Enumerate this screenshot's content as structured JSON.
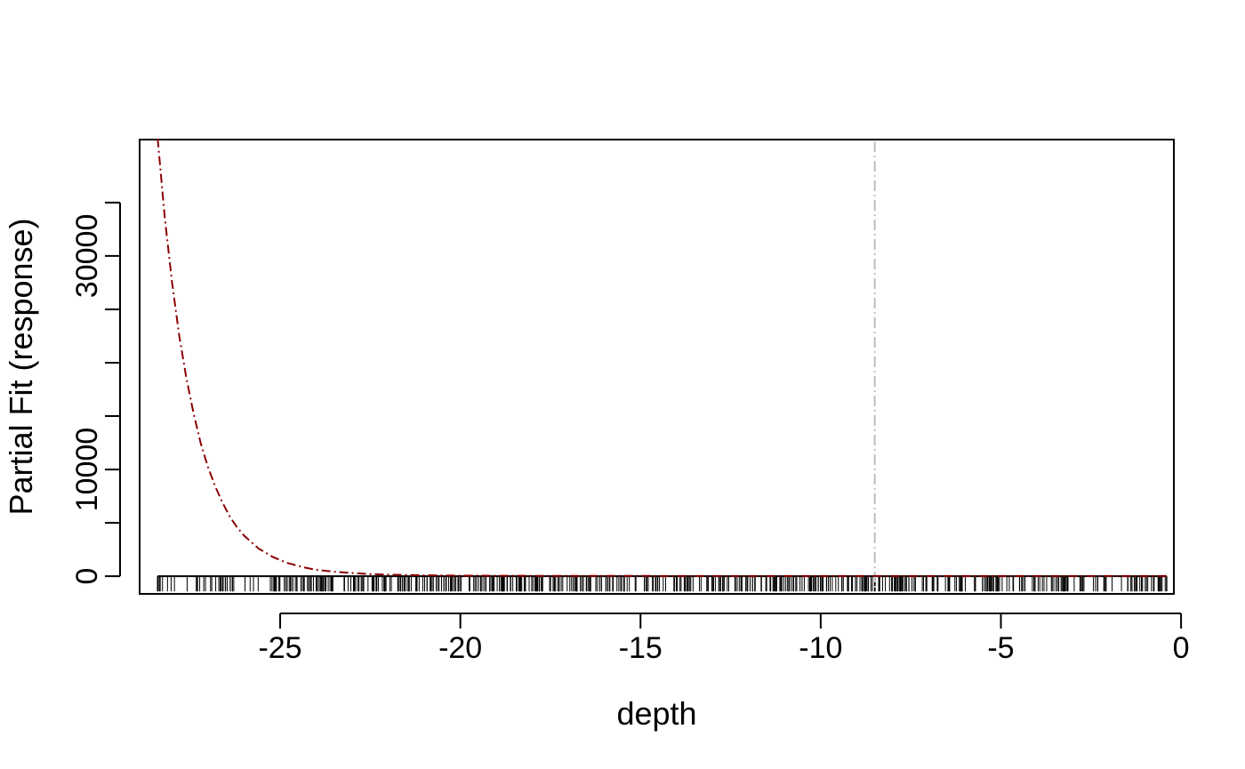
{
  "chart_data": {
    "type": "line",
    "xlabel": "depth",
    "ylabel": "Partial Fit (response)",
    "xlim": [
      -28.9,
      -0.2
    ],
    "ylim": [
      -1650,
      40900
    ],
    "x_ticks": [
      -25,
      -20,
      -15,
      -10,
      -5,
      0
    ],
    "x_tick_labels": [
      "-25",
      "-20",
      "-15",
      "-10",
      "-5",
      "0"
    ],
    "y_ticks": [
      0,
      5000,
      10000,
      15000,
      20000,
      25000,
      30000,
      35000
    ],
    "y_tick_labels": [
      "0",
      "",
      "10000",
      "",
      "",
      "",
      "30000",
      ""
    ],
    "grid": false,
    "series": [
      {
        "color": "#8b0000",
        "line_style": "dash-dot",
        "x": [
          -28.4,
          -28.2,
          -28.0,
          -27.8,
          -27.6,
          -27.4,
          -27.2,
          -27.0,
          -26.8,
          -26.6,
          -26.4,
          -26.2,
          -26.0,
          -25.6,
          -25.2,
          -24.8,
          -24.4,
          -24.0,
          -23.5,
          -23.0,
          -22.5,
          -22.0,
          -21.0,
          -20.0,
          -18.0,
          -15.0,
          -12.0,
          -9.0,
          -6.0,
          -3.0,
          -0.4
        ],
        "y": [
          41000,
          33500,
          27500,
          22500,
          18500,
          15200,
          12400,
          10200,
          8400,
          6900,
          5600,
          4600,
          3800,
          2600,
          1800,
          1250,
          870,
          600,
          420,
          300,
          210,
          150,
          90,
          60,
          40,
          30,
          25,
          22,
          20,
          20,
          20
        ]
      }
    ],
    "vertical_reference_line": {
      "x": -8.5,
      "color": "#bebebe",
      "line_style": "dash-dot"
    },
    "rug": {
      "x_min": -28.4,
      "x_max": -0.4,
      "color": "#000000",
      "density_breakpoints": [
        -28.4,
        -27.0,
        -25.0,
        -23.0,
        -21.0,
        -18.0,
        -15.0,
        -12.0,
        -9.0,
        -6.0,
        -3.0,
        -0.4
      ],
      "density_per_unit": [
        10,
        16,
        22,
        26,
        28,
        24,
        20,
        24,
        26,
        20,
        18
      ]
    },
    "colors": {
      "axis": "#000000",
      "background": "#ffffff"
    }
  }
}
